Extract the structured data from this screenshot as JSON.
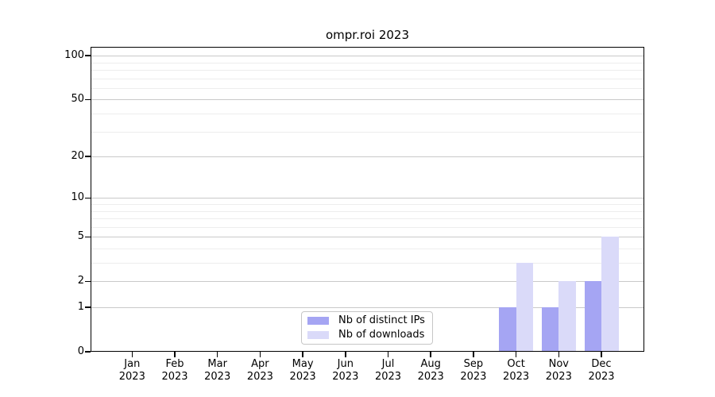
{
  "chart_data": {
    "type": "bar",
    "title": "ompr.roi 2023",
    "categories": [
      "Jan 2023",
      "Feb 2023",
      "Mar 2023",
      "Apr 2023",
      "May 2023",
      "Jun 2023",
      "Jul 2023",
      "Aug 2023",
      "Sep 2023",
      "Oct 2023",
      "Nov 2023",
      "Dec 2023"
    ],
    "series": [
      {
        "name": "Nb of distinct IPs",
        "color": "#a5a5f3",
        "values": [
          0,
          0,
          0,
          0,
          0,
          0,
          0,
          0,
          0,
          1,
          1,
          2
        ]
      },
      {
        "name": "Nb of downloads",
        "color": "#dadaf9",
        "values": [
          0,
          0,
          0,
          0,
          0,
          0,
          0,
          0,
          0,
          3,
          2,
          5
        ]
      }
    ],
    "yscale": "log1p",
    "ylim": [
      0,
      115
    ],
    "y_tick_labels": [
      0,
      1,
      2,
      5,
      10,
      20,
      50,
      100
    ],
    "y_major_gridlines": [
      1,
      2,
      5,
      10,
      20,
      50,
      100
    ],
    "y_minor_gridlines": [
      3,
      4,
      6,
      7,
      8,
      9,
      30,
      40,
      60,
      70,
      80,
      90
    ],
    "grid": "horizontal",
    "legend_position": "inside-bottom-center",
    "colors": {
      "bar_distinct_ips": "#a5a5f3",
      "bar_downloads": "#dadaf9",
      "grid_major": "#c9c9c9",
      "grid_minor": "#ededed",
      "axis": "#000000"
    }
  }
}
